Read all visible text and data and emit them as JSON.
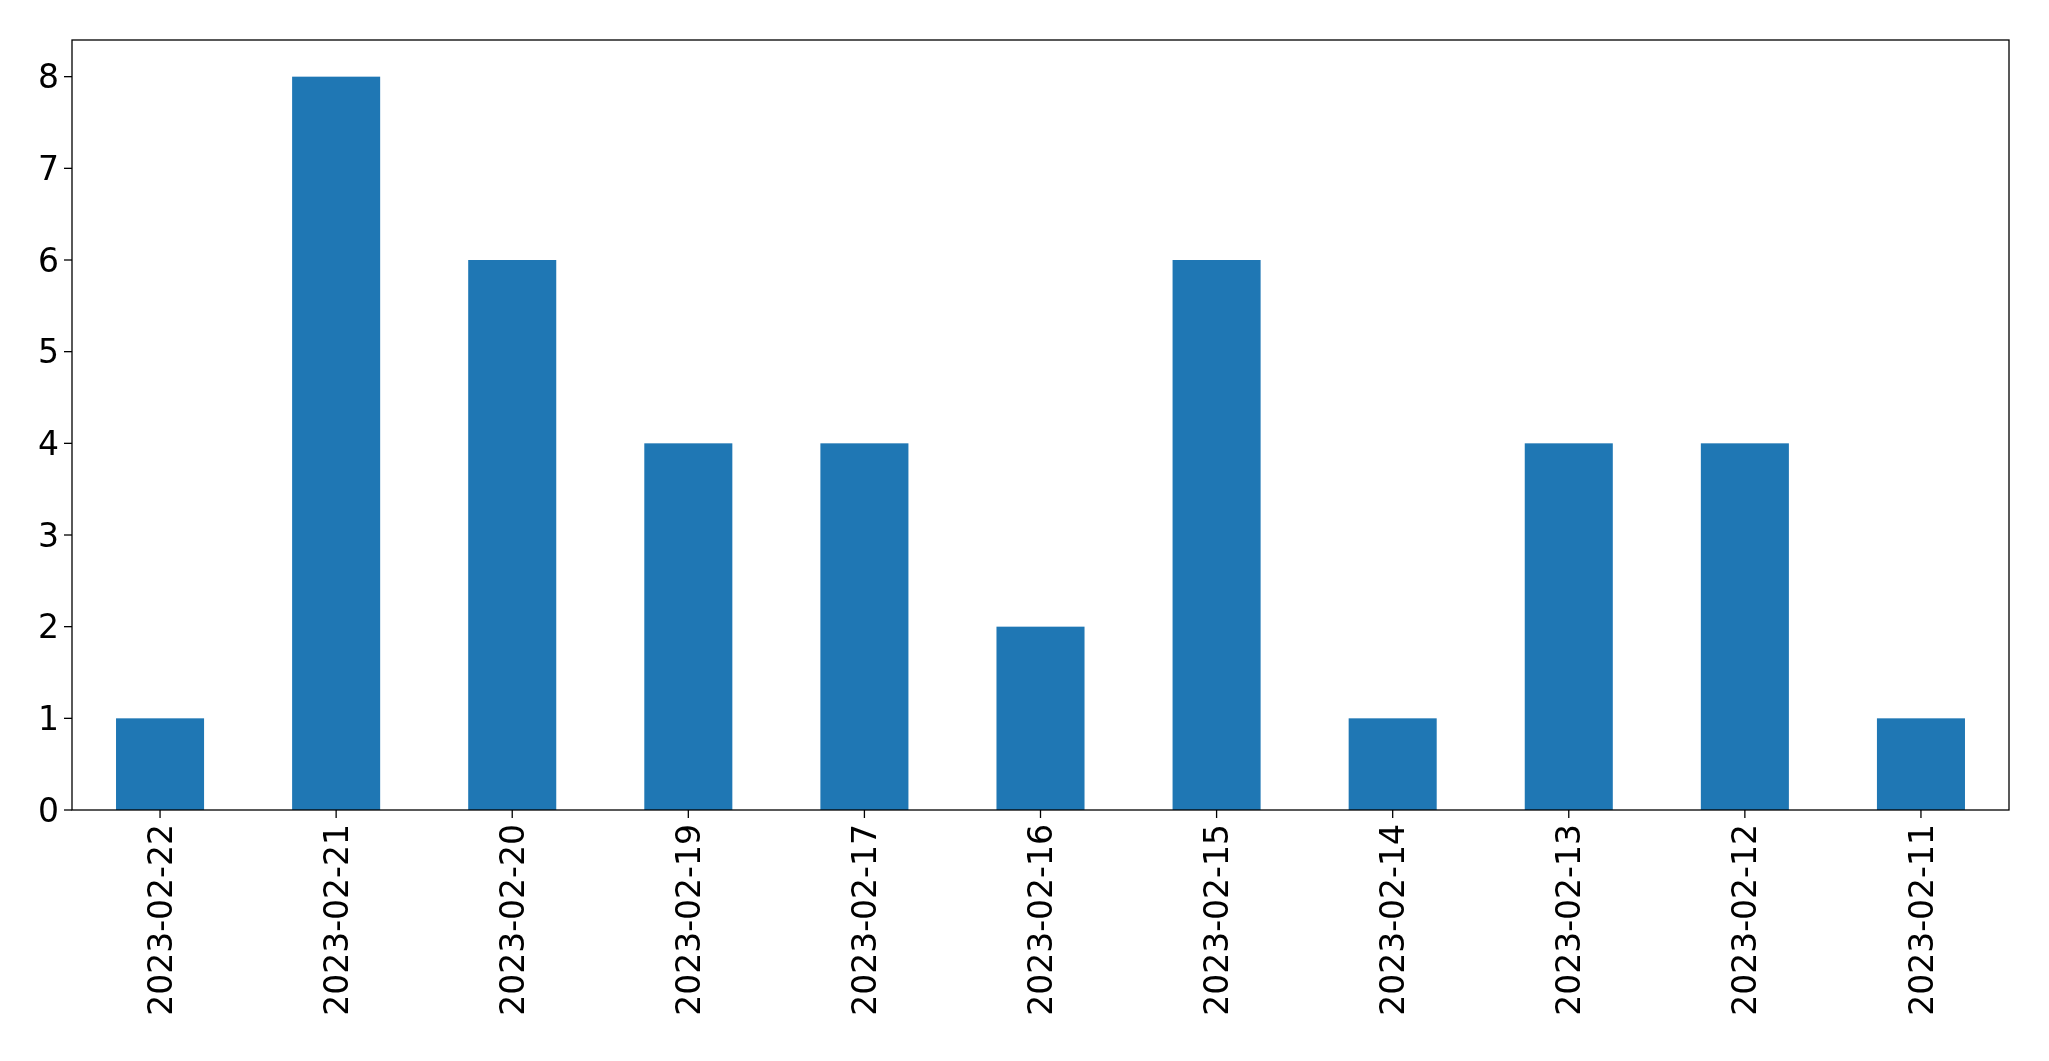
{
  "chart_data": {
    "type": "bar",
    "categories": [
      "2023-02-22",
      "2023-02-21",
      "2023-02-20",
      "2023-02-19",
      "2023-02-17",
      "2023-02-16",
      "2023-02-15",
      "2023-02-14",
      "2023-02-13",
      "2023-02-12",
      "2023-02-11"
    ],
    "values": [
      1,
      8,
      6,
      4,
      4,
      2,
      6,
      1,
      4,
      4,
      1
    ],
    "color": "#1f77b4",
    "ylim": [
      0,
      8.4
    ],
    "yticks": [
      0,
      1,
      2,
      3,
      4,
      5,
      6,
      7,
      8
    ],
    "grid": false
  }
}
